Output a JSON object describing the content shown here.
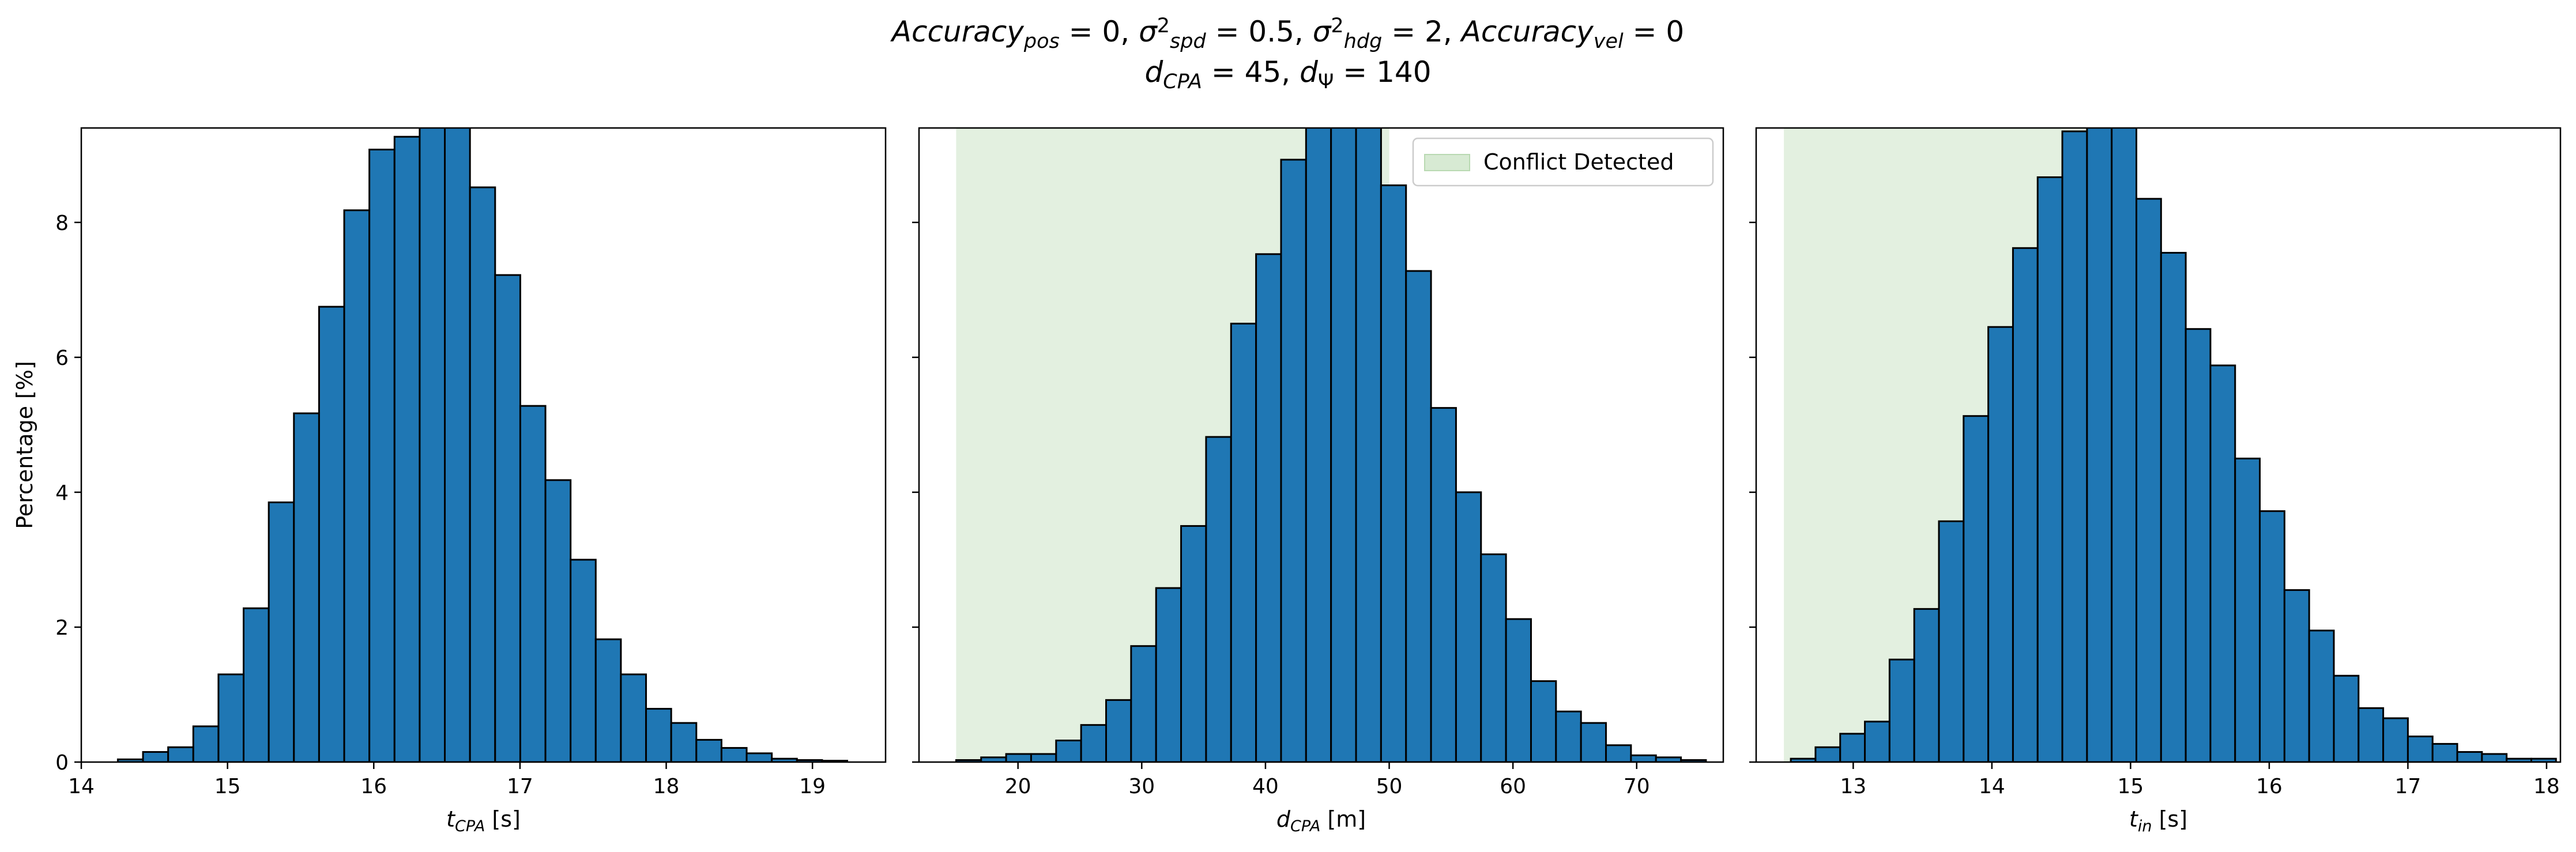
{
  "title": {
    "line1": [
      {
        "text": "Accuracy",
        "style": "italic"
      },
      {
        "text": "pos",
        "style": "italic",
        "sub": true
      },
      {
        "text": " = 0, "
      },
      {
        "text": "σ",
        "style": "italic"
      },
      {
        "text": "2",
        "sup": true
      },
      {
        "text": "spd",
        "style": "italic",
        "sub": true
      },
      {
        "text": " = 0.5, "
      },
      {
        "text": "σ",
        "style": "italic"
      },
      {
        "text": "2",
        "sup": true
      },
      {
        "text": "hdg",
        "style": "italic",
        "sub": true
      },
      {
        "text": " = 2, "
      },
      {
        "text": "Accuracy",
        "style": "italic"
      },
      {
        "text": "vel",
        "style": "italic",
        "sub": true
      },
      {
        "text": " = 0"
      }
    ],
    "line2": [
      {
        "text": "d",
        "style": "italic"
      },
      {
        "text": "CPA",
        "style": "italic",
        "sub": true
      },
      {
        "text": " = 45, "
      },
      {
        "text": "d",
        "style": "italic"
      },
      {
        "text": "Ψ",
        "sub": true
      },
      {
        "text": " = 140"
      }
    ]
  },
  "colors": {
    "bar_fill": "#1f77b4",
    "bar_edge": "#000000",
    "conflict_fill": "#d7ead3"
  },
  "chart_data": [
    {
      "type": "bar",
      "xlabel": [
        {
          "text": "t",
          "style": "italic"
        },
        {
          "text": "CPA",
          "style": "italic",
          "sub": true
        },
        {
          "text": " [s]"
        }
      ],
      "ylabel": "Percentage [%]",
      "xlim": [
        14.0,
        19.5
      ],
      "ylim": [
        0,
        9.4
      ],
      "xticks": [
        14,
        15,
        16,
        17,
        18,
        19
      ],
      "yticks": [
        0,
        2,
        4,
        6,
        8
      ],
      "show_ytick_labels": true,
      "bin_start": 14.25,
      "bin_width": 0.172,
      "values": [
        0.04,
        0.15,
        0.22,
        0.53,
        1.3,
        2.28,
        3.85,
        5.17,
        6.75,
        8.18,
        9.08,
        9.27,
        9.6,
        9.6,
        8.52,
        7.22,
        5.28,
        4.18,
        3.0,
        1.82,
        1.3,
        0.79,
        0.58,
        0.33,
        0.21,
        0.13,
        0.05,
        0.03,
        0.02
      ],
      "conflict_region": null,
      "legend": null
    },
    {
      "type": "bar",
      "xlabel": [
        {
          "text": "d",
          "style": "italic"
        },
        {
          "text": "CPA",
          "style": "italic",
          "sub": true
        },
        {
          "text": " [m]"
        }
      ],
      "ylabel": "",
      "xlim": [
        12.0,
        77.0
      ],
      "ylim": [
        0,
        9.4
      ],
      "xticks": [
        20,
        30,
        40,
        50,
        60,
        70
      ],
      "yticks": [
        0,
        2,
        4,
        6,
        8
      ],
      "show_ytick_labels": false,
      "bin_start": 15.0,
      "bin_width": 2.02,
      "values": [
        0.03,
        0.07,
        0.12,
        0.12,
        0.32,
        0.55,
        0.92,
        1.72,
        2.58,
        3.5,
        4.82,
        6.5,
        7.53,
        8.93,
        9.6,
        9.6,
        9.6,
        8.55,
        7.28,
        5.25,
        4.0,
        3.08,
        2.12,
        1.2,
        0.75,
        0.58,
        0.25,
        0.1,
        0.07,
        0.03
      ],
      "conflict_region": [
        15.0,
        50.0
      ],
      "legend": {
        "label": "Conflict Detected",
        "placement": "top-right"
      }
    },
    {
      "type": "bar",
      "xlabel": [
        {
          "text": "t",
          "style": "italic"
        },
        {
          "text": "in",
          "style": "italic",
          "sub": true
        },
        {
          "text": " [s]"
        }
      ],
      "ylabel": "",
      "xlim": [
        12.3,
        18.1
      ],
      "ylim": [
        0,
        9.4
      ],
      "xticks": [
        13,
        14,
        15,
        16,
        17,
        18
      ],
      "yticks": [
        0,
        2,
        4,
        6,
        8
      ],
      "show_ytick_labels": false,
      "bin_start": 12.55,
      "bin_width": 0.178,
      "values": [
        0.05,
        0.22,
        0.42,
        0.6,
        1.52,
        2.27,
        3.57,
        5.13,
        6.45,
        7.62,
        8.67,
        9.35,
        9.6,
        9.6,
        8.35,
        7.55,
        6.42,
        5.88,
        4.5,
        3.72,
        2.55,
        1.95,
        1.28,
        0.8,
        0.65,
        0.38,
        0.27,
        0.15,
        0.12,
        0.05,
        0.05
      ],
      "conflict_region": [
        12.5,
        15.0
      ],
      "legend": null
    }
  ]
}
